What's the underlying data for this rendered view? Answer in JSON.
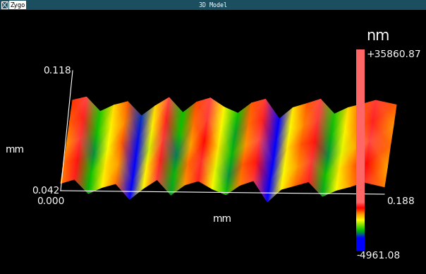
{
  "header": {
    "logo": "Zygo",
    "title": "3D Model"
  },
  "chart_data": {
    "type": "surface",
    "xlabel": "mm",
    "ylabel": "mm",
    "xlim": [
      0.0,
      0.188
    ],
    "ylim": [
      0.042,
      0.118
    ],
    "xticks": [
      {
        "value": 0.0,
        "label": "0.000"
      },
      {
        "value": 0.188,
        "label": "0.188"
      }
    ],
    "yticks": [
      {
        "value": 0.042,
        "label": "0.042"
      },
      {
        "value": 0.118,
        "label": "0.118"
      }
    ],
    "x": [
      0.0,
      0.008,
      0.016,
      0.024,
      0.032,
      0.04,
      0.048,
      0.056,
      0.064,
      0.072,
      0.08,
      0.088,
      0.096,
      0.104,
      0.112,
      0.12,
      0.128,
      0.136,
      0.144,
      0.152,
      0.16,
      0.168,
      0.176,
      0.188
    ],
    "y": [
      0.042,
      0.061,
      0.08,
      0.099,
      0.118
    ],
    "z": [
      [
        2600,
        4100,
        -900,
        1300,
        2700,
        -2800,
        1100,
        4300,
        -1100,
        2500,
        4000,
        1200,
        -800,
        2600,
        4300,
        -3200,
        1300,
        2700,
        4100,
        -1000,
        1200,
        2500,
        4200,
        2600
      ],
      [
        2800,
        3900,
        -700,
        1500,
        2400,
        -3600,
        1400,
        4000,
        -900,
        2700,
        4200,
        1000,
        -1200,
        2900,
        3900,
        -2600,
        1100,
        2400,
        4400,
        -700,
        1500,
        2800,
        3800,
        2300
      ],
      [
        2400,
        4300,
        -1200,
        1100,
        2900,
        -3100,
        900,
        4400,
        -1300,
        2300,
        3800,
        1500,
        -900,
        2500,
        4500,
        -3400,
        1500,
        2900,
        3900,
        -1200,
        1000,
        2300,
        4500,
        2800
      ],
      [
        3000,
        4000,
        -800,
        1400,
        2600,
        -2400,
        1300,
        4100,
        -800,
        2800,
        4300,
        1100,
        -1100,
        2700,
        4000,
        -2900,
        1200,
        2600,
        4300,
        -900,
        1400,
        2700,
        4000,
        2500
      ],
      [
        3300,
        4500,
        -600,
        1700,
        3000,
        -2000,
        1600,
        4600,
        -700,
        3100,
        4600,
        1400,
        -700,
        3000,
        4400,
        -2500,
        1500,
        3000,
        4600,
        -600,
        1700,
        3000,
        4400,
        2900
      ]
    ],
    "colorbar": {
      "label": "nm",
      "range": [
        -4961.08,
        35860.87
      ],
      "ticks": [
        {
          "value": 35860.87,
          "label": "+35860.87"
        },
        {
          "value": -4961.08,
          "label": "-4961.08"
        }
      ]
    }
  }
}
